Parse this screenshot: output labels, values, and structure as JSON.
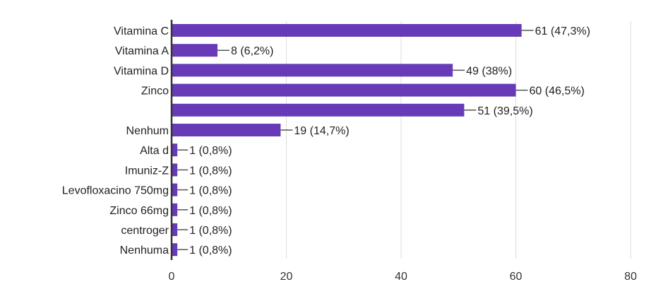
{
  "chart_data": {
    "type": "bar",
    "orientation": "horizontal",
    "categories": [
      "Vitamina C",
      "Vitamina A",
      "Vitamina D",
      "Zinco",
      "",
      "Nenhum",
      "Alta d",
      "Imuniz-Z",
      "Levofloxacino 750mg",
      "Zinco 66mg",
      "centroger",
      "Nenhuma"
    ],
    "values": [
      61,
      8,
      49,
      60,
      51,
      19,
      1,
      1,
      1,
      1,
      1,
      1
    ],
    "data_labels": [
      "61 (47,3%)",
      "8 (6,2%)",
      "49 (38%)",
      "60 (46,5%)",
      "51 (39,5%)",
      "19 (14,7%)",
      "1 (0,8%)",
      "1 (0,8%)",
      "1 (0,8%)",
      "1 (0,8%)",
      "1 (0,8%)",
      "1 (0,8%)"
    ],
    "xlim": [
      0,
      80
    ],
    "xticks": [
      "0",
      "20",
      "40",
      "60",
      "80"
    ],
    "title": "",
    "xlabel": "",
    "ylabel": "",
    "grid": true,
    "legend": "none",
    "bar_color": "#673ab7"
  }
}
